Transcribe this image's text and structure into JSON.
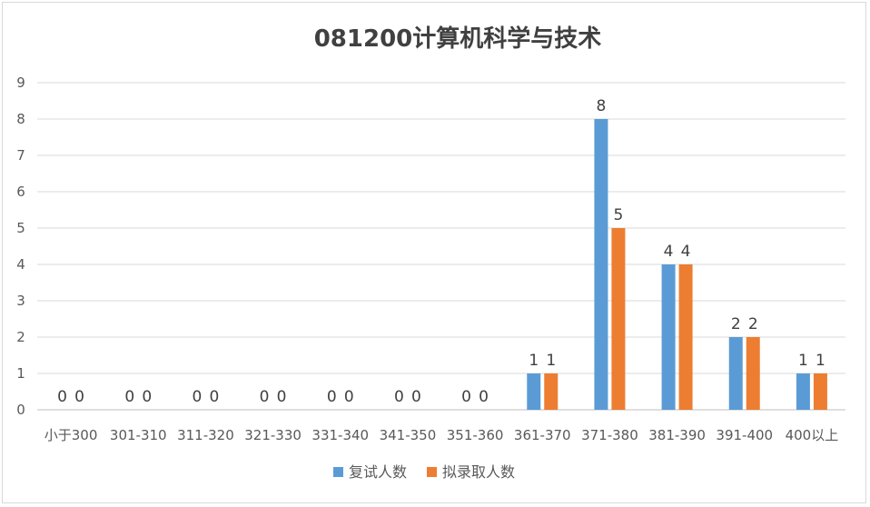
{
  "chart_data": {
    "type": "bar",
    "title": "081200计算机科学与技术",
    "xlabel": "",
    "ylabel": "",
    "ylim": [
      0,
      9
    ],
    "yticks": [
      "0",
      "1",
      "2",
      "3",
      "4",
      "5",
      "6",
      "7",
      "8",
      "9"
    ],
    "grid": true,
    "legend": "bottom",
    "categories": [
      "小于300",
      "301-310",
      "311-320",
      "321-330",
      "331-340",
      "341-350",
      "351-360",
      "361-370",
      "371-380",
      "381-390",
      "391-400",
      "400以上"
    ],
    "series": [
      {
        "name": "复试人数",
        "color": "#5b9bd5",
        "values": [
          0,
          0,
          0,
          0,
          0,
          0,
          0,
          1,
          8,
          4,
          2,
          1
        ]
      },
      {
        "name": "拟录取人数",
        "color": "#ed7d31",
        "values": [
          0,
          0,
          0,
          0,
          0,
          0,
          0,
          1,
          5,
          4,
          2,
          1
        ]
      }
    ]
  }
}
